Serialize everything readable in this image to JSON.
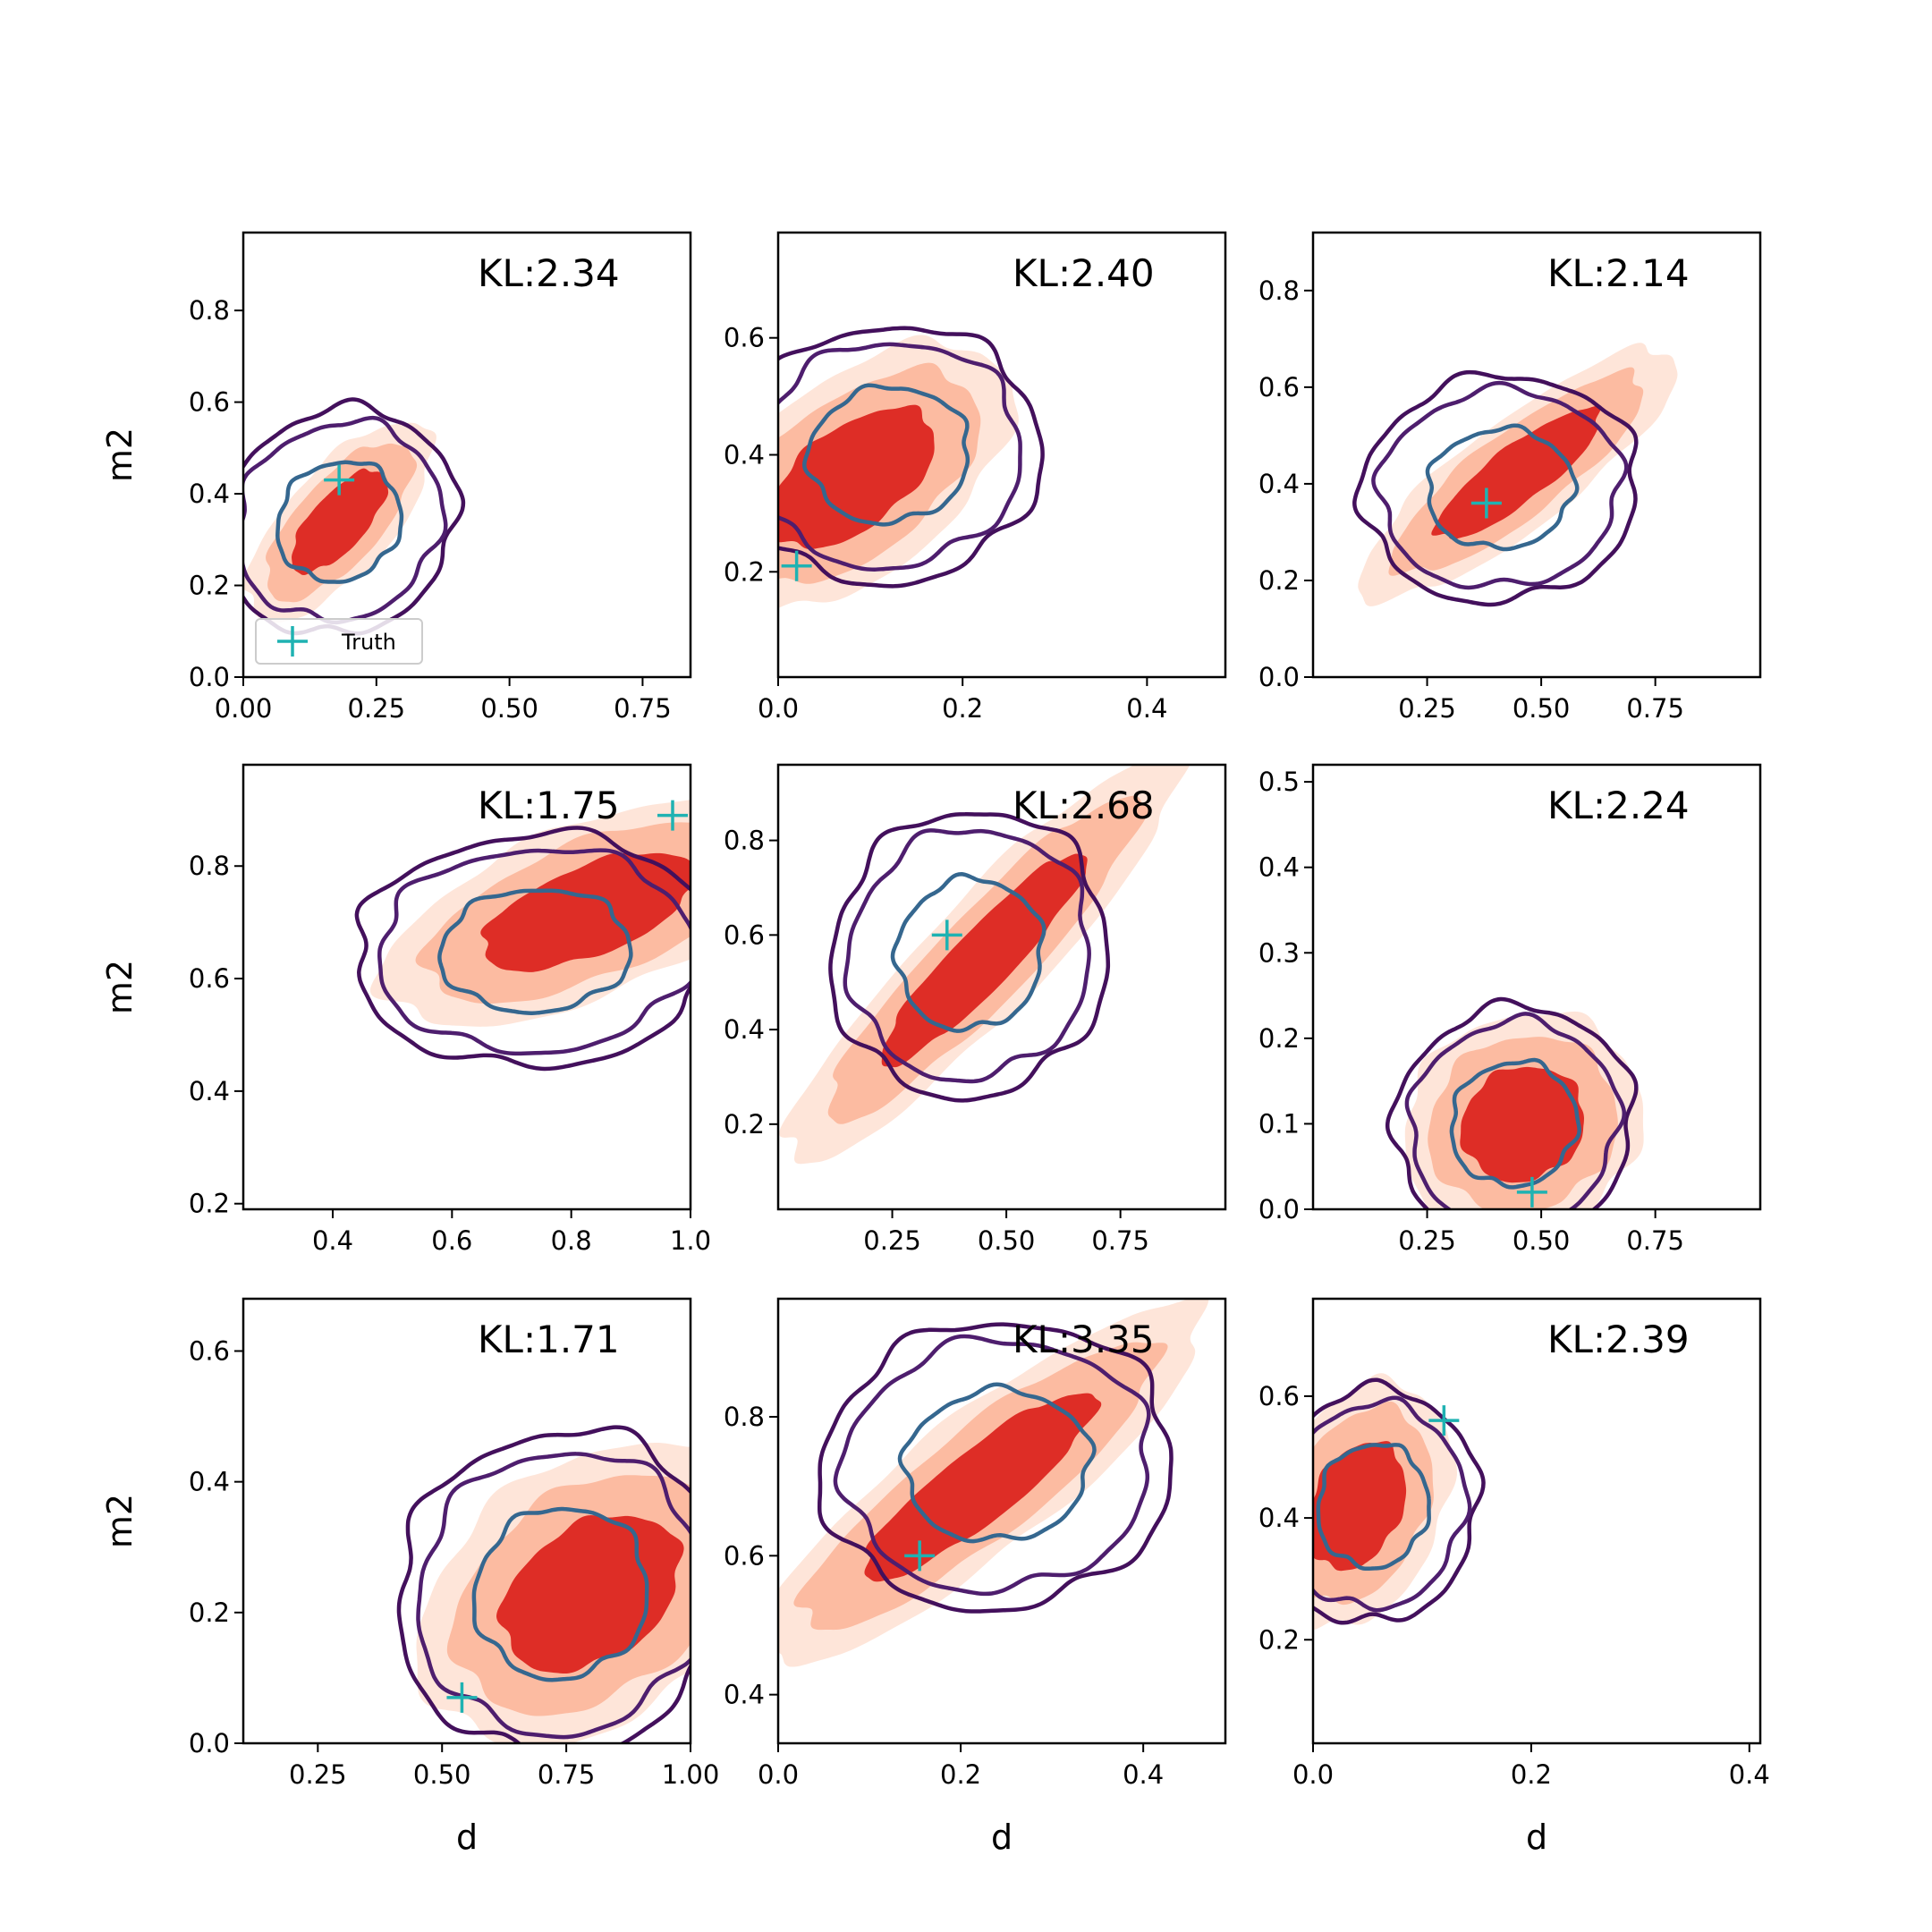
{
  "figure": {
    "legend_label": "Truth",
    "colors": {
      "truth_marker": "#1fb2b2",
      "fill_outer": "#fee5d9",
      "fill_mid": "#fcbba1",
      "fill_inner": "#de2d26",
      "contour_outer": "#43105c",
      "contour_mid": "#4e1e6e",
      "contour_inner": "#35678f"
    }
  },
  "chart_data": [
    {
      "type": "contour",
      "kl": "KL:2.34",
      "xlabel": "",
      "ylabel": "m2",
      "xlim": [
        0.0,
        0.84
      ],
      "ylim": [
        0.0,
        0.97
      ],
      "xticks": [
        "0.00",
        "0.25",
        "0.50",
        "0.75"
      ],
      "yticks": [
        "0.0",
        "0.2",
        "0.4",
        "0.6",
        "0.8"
      ],
      "truth": [
        0.18,
        0.43
      ],
      "legend": true,
      "posterior": {
        "cx": 0.18,
        "cy": 0.34,
        "sx": 0.06,
        "sy": 0.075,
        "rho": 0.7
      },
      "approx": {
        "cx": 0.18,
        "cy": 0.34,
        "sx": 0.08,
        "sy": 0.09,
        "rho": 0.1
      }
    },
    {
      "type": "contour",
      "kl": "KL:2.40",
      "xlabel": "",
      "ylabel": "",
      "xlim": [
        0.0,
        0.485
      ],
      "ylim": [
        0.02,
        0.78
      ],
      "xticks": [
        "0.0",
        "0.2",
        "0.4"
      ],
      "yticks": [
        "0.2",
        "0.4",
        "0.6"
      ],
      "truth": [
        0.02,
        0.21
      ],
      "legend": false,
      "posterior": {
        "cx": 0.08,
        "cy": 0.36,
        "sx": 0.06,
        "sy": 0.08,
        "rho": 0.55
      },
      "approx": {
        "cx": 0.12,
        "cy": 0.4,
        "sx": 0.06,
        "sy": 0.08,
        "rho": 0.05
      }
    },
    {
      "type": "contour",
      "kl": "KL:2.14",
      "xlabel": "",
      "ylabel": "",
      "xlim": [
        0.0,
        0.98
      ],
      "ylim": [
        0.0,
        0.92
      ],
      "xticks": [
        "0.25",
        "0.50",
        "0.75"
      ],
      "yticks": [
        "0.0",
        "0.2",
        "0.4",
        "0.6",
        "0.8"
      ],
      "truth": [
        0.38,
        0.36
      ],
      "legend": false,
      "posterior": {
        "cx": 0.45,
        "cy": 0.42,
        "sx": 0.12,
        "sy": 0.09,
        "rho": 0.85
      },
      "approx": {
        "cx": 0.41,
        "cy": 0.39,
        "sx": 0.11,
        "sy": 0.085,
        "rho": 0.05
      }
    },
    {
      "type": "contour",
      "kl": "KL:1.75",
      "xlabel": "",
      "ylabel": "m2",
      "xlim": [
        0.25,
        1.0
      ],
      "ylim": [
        0.19,
        0.98
      ],
      "xticks": [
        "0.4",
        "0.6",
        "0.8",
        "1.0"
      ],
      "yticks": [
        "0.2",
        "0.4",
        "0.6",
        "0.8"
      ],
      "truth": [
        0.97,
        0.89
      ],
      "legend": false,
      "posterior": {
        "cx": 0.83,
        "cy": 0.72,
        "sx": 0.12,
        "sy": 0.07,
        "rho": 0.6
      },
      "approx": {
        "cx": 0.74,
        "cy": 0.65,
        "sx": 0.11,
        "sy": 0.075,
        "rho": 0.05
      }
    },
    {
      "type": "contour",
      "kl": "KL:2.68",
      "xlabel": "",
      "ylabel": "",
      "xlim": [
        0.0,
        0.98
      ],
      "ylim": [
        0.02,
        0.96
      ],
      "xticks": [
        "0.25",
        "0.50",
        "0.75"
      ],
      "yticks": [
        "0.2",
        "0.4",
        "0.6",
        "0.8"
      ],
      "truth": [
        0.37,
        0.6
      ],
      "legend": false,
      "posterior": {
        "cx": 0.45,
        "cy": 0.55,
        "sx": 0.15,
        "sy": 0.15,
        "rho": 0.92
      },
      "approx": {
        "cx": 0.42,
        "cy": 0.56,
        "sx": 0.11,
        "sy": 0.11,
        "rho": 0.05
      }
    },
    {
      "type": "contour",
      "kl": "KL:2.24",
      "xlabel": "",
      "ylabel": "",
      "xlim": [
        0.0,
        0.98
      ],
      "ylim": [
        0.0,
        0.52
      ],
      "xticks": [
        "0.25",
        "0.50",
        "0.75"
      ],
      "yticks": [
        "0.0",
        "0.1",
        "0.2",
        "0.3",
        "0.4",
        "0.5"
      ],
      "truth": [
        0.48,
        0.02
      ],
      "legend": false,
      "posterior": {
        "cx": 0.46,
        "cy": 0.1,
        "sx": 0.09,
        "sy": 0.045,
        "rho": 0.1
      },
      "approx": {
        "cx": 0.44,
        "cy": 0.1,
        "sx": 0.095,
        "sy": 0.05,
        "rho": 0.05
      }
    },
    {
      "type": "contour",
      "kl": "KL:1.71",
      "xlabel": "d",
      "ylabel": "m2",
      "xlim": [
        0.1,
        1.0
      ],
      "ylim": [
        0.0,
        0.68
      ],
      "xticks": [
        "0.25",
        "0.50",
        "0.75",
        "1.00"
      ],
      "yticks": [
        "0.0",
        "0.2",
        "0.4",
        "0.6"
      ],
      "truth": [
        0.54,
        0.07
      ],
      "legend": false,
      "posterior": {
        "cx": 0.8,
        "cy": 0.23,
        "sx": 0.12,
        "sy": 0.08,
        "rho": 0.35
      },
      "approx": {
        "cx": 0.74,
        "cy": 0.23,
        "sx": 0.12,
        "sy": 0.09,
        "rho": 0.05
      }
    },
    {
      "type": "contour",
      "kl": "KL:3.35",
      "xlabel": "d",
      "ylabel": "",
      "xlim": [
        0.0,
        0.49
      ],
      "ylim": [
        0.33,
        0.97
      ],
      "xticks": [
        "0.0",
        "0.2",
        "0.4"
      ],
      "yticks": [
        "0.4",
        "0.6",
        "0.8"
      ],
      "truth": [
        0.155,
        0.6
      ],
      "legend": false,
      "posterior": {
        "cx": 0.22,
        "cy": 0.7,
        "sx": 0.085,
        "sy": 0.09,
        "rho": 0.88
      },
      "approx": {
        "cx": 0.24,
        "cy": 0.73,
        "sx": 0.07,
        "sy": 0.075,
        "rho": 0.05
      }
    },
    {
      "type": "contour",
      "kl": "KL:2.39",
      "xlabel": "d",
      "ylabel": "",
      "xlim": [
        0.0,
        0.41
      ],
      "ylim": [
        0.03,
        0.76
      ],
      "xticks": [
        "0.0",
        "0.2",
        "0.4"
      ],
      "yticks": [
        "0.2",
        "0.4",
        "0.6"
      ],
      "truth": [
        0.12,
        0.56
      ],
      "legend": false,
      "posterior": {
        "cx": 0.04,
        "cy": 0.42,
        "sx": 0.03,
        "sy": 0.07,
        "rho": 0.3
      },
      "approx": {
        "cx": 0.055,
        "cy": 0.42,
        "sx": 0.035,
        "sy": 0.07,
        "rho": 0.05
      }
    }
  ]
}
